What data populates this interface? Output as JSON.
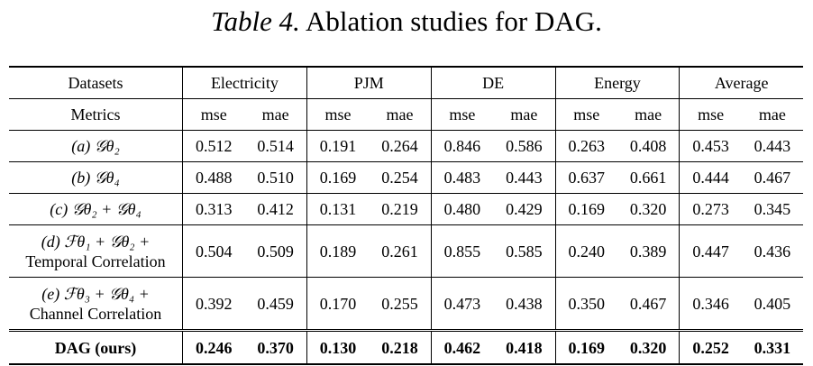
{
  "caption": {
    "label": "Table 4.",
    "text": "Ablation studies for DAG."
  },
  "table": {
    "header_datasets": "Datasets",
    "datasets": [
      "Electricity",
      "PJM",
      "DE",
      "Energy",
      "Average"
    ],
    "header_metrics": "Metrics",
    "metric_mse": "mse",
    "metric_mae": "mae",
    "rows": [
      {
        "label_lines": [
          "(a) 𝒢θ₂"
        ],
        "values": [
          "0.512",
          "0.514",
          "0.191",
          "0.264",
          "0.846",
          "0.586",
          "0.263",
          "0.408",
          "0.453",
          "0.443"
        ],
        "bold": false
      },
      {
        "label_lines": [
          "(b) 𝒢θ₄"
        ],
        "values": [
          "0.488",
          "0.510",
          "0.169",
          "0.254",
          "0.483",
          "0.443",
          "0.637",
          "0.661",
          "0.444",
          "0.467"
        ],
        "bold": false
      },
      {
        "label_lines": [
          "(c) 𝒢θ₂ + 𝒢θ₄"
        ],
        "values": [
          "0.313",
          "0.412",
          "0.131",
          "0.219",
          "0.480",
          "0.429",
          "0.169",
          "0.320",
          "0.273",
          "0.345"
        ],
        "bold": false
      },
      {
        "label_lines": [
          "(d) ℱθ₁ + 𝒢θ₂ +",
          "Temporal Correlation"
        ],
        "values": [
          "0.504",
          "0.509",
          "0.189",
          "0.261",
          "0.855",
          "0.585",
          "0.240",
          "0.389",
          "0.447",
          "0.436"
        ],
        "bold": false
      },
      {
        "label_lines": [
          "(e) ℱθ₃ + 𝒢θ₄ +",
          "Channel Correlation"
        ],
        "values": [
          "0.392",
          "0.459",
          "0.170",
          "0.255",
          "0.473",
          "0.438",
          "0.350",
          "0.467",
          "0.346",
          "0.405"
        ],
        "bold": false
      },
      {
        "label_lines": [
          "DAG (ours)"
        ],
        "values": [
          "0.246",
          "0.370",
          "0.130",
          "0.218",
          "0.462",
          "0.418",
          "0.169",
          "0.320",
          "0.252",
          "0.331"
        ],
        "bold": true
      }
    ]
  }
}
